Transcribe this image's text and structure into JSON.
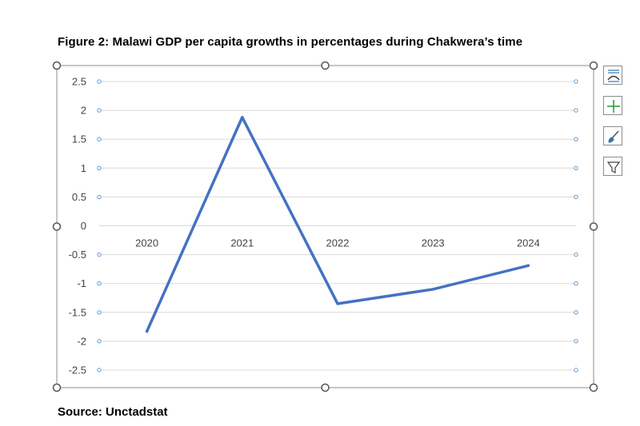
{
  "figure": {
    "title": "Figure 2: Malawi GDP per capita growths in percentages during Chakwera’s time",
    "source": "Source: Unctadstat"
  },
  "chart_data": {
    "type": "line",
    "title": "",
    "xlabel": "",
    "ylabel": "",
    "x": [
      "2020",
      "2021",
      "2022",
      "2023",
      "2024"
    ],
    "series": [
      {
        "values": [
          -1.83,
          1.88,
          -1.35,
          -1.1,
          -0.69
        ],
        "color": "#4472c4"
      }
    ],
    "ylim": [
      -2.5,
      2.5
    ],
    "yticks": [
      2.5,
      2,
      1.5,
      1,
      0.5,
      0,
      -0.5,
      -1,
      -1.5,
      -2,
      -2.5
    ],
    "ytick_labels": [
      "2.5",
      "2",
      "1.5",
      "1",
      "0.5",
      "0",
      "-0.5",
      "-1",
      "-1.5",
      "-2",
      "-2.5"
    ],
    "grid": true,
    "legend": "none",
    "gridline_color": "#d9d9d9",
    "handle_point_color": "#5b9bd5"
  },
  "tools": {
    "icons": [
      "chart-styles-icon",
      "chart-elements-plus-icon",
      "chart-brush-icon",
      "chart-filter-icon"
    ]
  }
}
